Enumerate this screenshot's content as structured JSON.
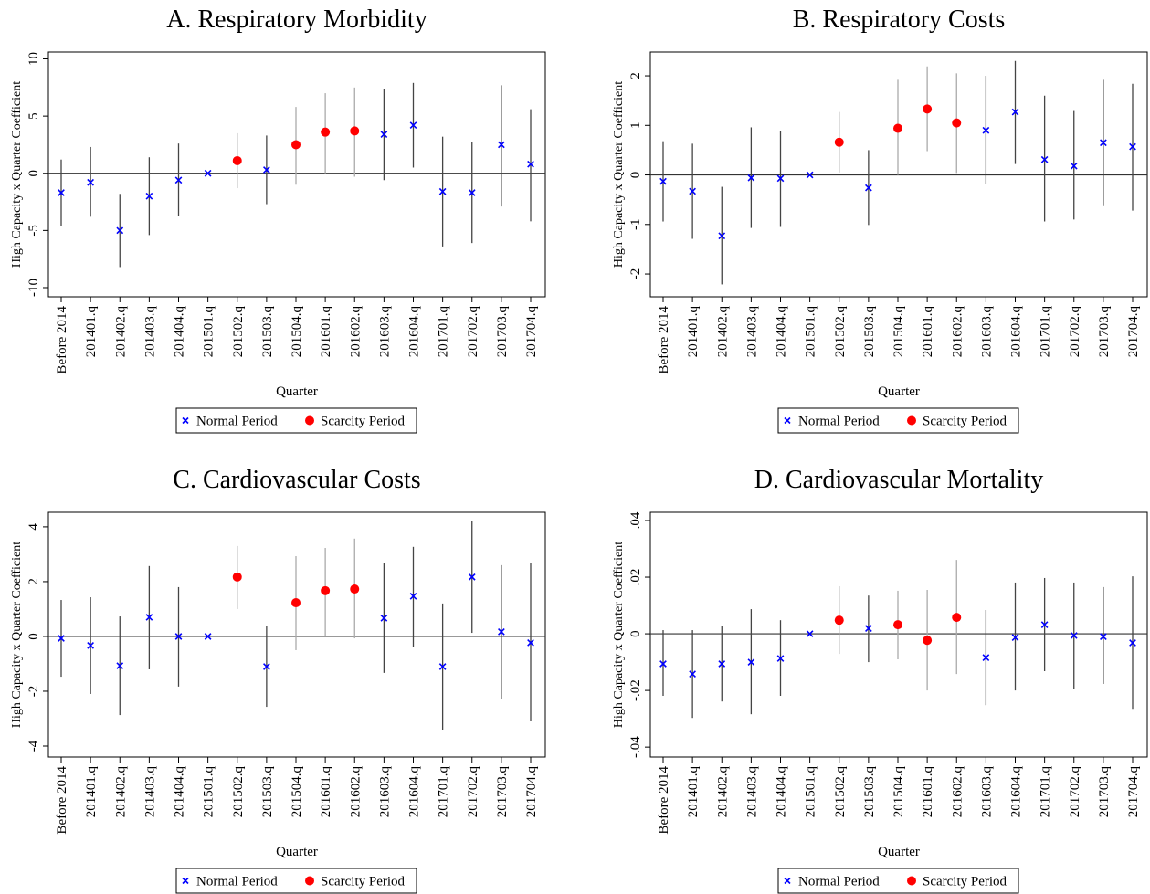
{
  "chart_data": [
    {
      "type": "errorbar",
      "title": "A. Respiratory Morbidity",
      "x_label": "Quarter",
      "y_label": "High Capacity x Quarter Coefficient",
      "categories": [
        "Before 2014",
        "201401.q",
        "201402.q",
        "201403.q",
        "201404.q",
        "201501.q",
        "201502.q",
        "201503.q",
        "201504.q",
        "201601.q",
        "201602.q",
        "201603.q",
        "201604.q",
        "201701.q",
        "201702.q",
        "201703.q",
        "201704.q"
      ],
      "ylim": [
        -10.8,
        10.6
      ],
      "yticks": [
        -10,
        -5,
        0,
        5,
        10
      ],
      "legend": "bottom",
      "series": [
        {
          "name": "Normal Period",
          "color": "#0000ff",
          "marker": "x",
          "ci_color": "#444444",
          "values": [
            -1.7,
            -0.8,
            -5.0,
            -2.0,
            -0.6,
            0,
            null,
            0.3,
            null,
            null,
            null,
            3.4,
            4.2,
            -1.6,
            -1.7,
            2.5,
            0.8
          ],
          "ci_low": [
            -4.6,
            -3.8,
            -8.2,
            -5.4,
            -3.7,
            null,
            null,
            -2.7,
            null,
            null,
            null,
            -0.6,
            0.5,
            -6.4,
            -6.1,
            -2.9,
            -4.2
          ],
          "ci_high": [
            1.2,
            2.3,
            -1.8,
            1.4,
            2.6,
            null,
            null,
            3.3,
            null,
            null,
            null,
            7.4,
            7.9,
            3.2,
            2.7,
            7.7,
            5.6
          ]
        },
        {
          "name": "Scarcity Period",
          "color": "#ff0000",
          "marker": "circle",
          "ci_color": "#aaaaaa",
          "values": [
            null,
            null,
            null,
            null,
            null,
            null,
            1.1,
            null,
            2.5,
            3.6,
            3.7,
            null,
            null,
            null,
            null,
            null,
            null
          ],
          "ci_low": [
            null,
            null,
            null,
            null,
            null,
            null,
            -1.3,
            null,
            -1.0,
            0.0,
            -0.3,
            null,
            null,
            null,
            null,
            null,
            null
          ],
          "ci_high": [
            null,
            null,
            null,
            null,
            null,
            null,
            3.5,
            null,
            5.8,
            7.0,
            7.5,
            null,
            null,
            null,
            null,
            null,
            null
          ]
        }
      ]
    },
    {
      "type": "errorbar",
      "title": "B. Respiratory Costs",
      "x_label": "Quarter",
      "y_label": "High Capacity x Quarter Coefficient",
      "categories": [
        "Before 2014",
        "201401.q",
        "201402.q",
        "201403.q",
        "201404.q",
        "201501.q",
        "201502.q",
        "201503.q",
        "201504.q",
        "201601.q",
        "201602.q",
        "201603.q",
        "201604.q",
        "201701.q",
        "201702.q",
        "201703.q",
        "201704.q"
      ],
      "ylim": [
        -2.46,
        2.48
      ],
      "yticks": [
        -2,
        -1,
        0,
        1,
        2
      ],
      "legend": "bottom",
      "series": [
        {
          "name": "Normal Period",
          "color": "#0000ff",
          "marker": "x",
          "ci_color": "#444444",
          "values": [
            -0.13,
            -0.33,
            -1.23,
            -0.06,
            -0.07,
            0,
            null,
            -0.26,
            null,
            null,
            null,
            0.9,
            1.27,
            0.31,
            0.18,
            0.65,
            0.57
          ],
          "ci_low": [
            -0.94,
            -1.29,
            -2.21,
            -1.07,
            -1.05,
            null,
            null,
            -1.01,
            null,
            null,
            null,
            -0.18,
            0.22,
            -0.94,
            -0.9,
            -0.63,
            -0.72
          ],
          "ci_high": [
            0.68,
            0.63,
            -0.24,
            0.96,
            0.88,
            null,
            null,
            0.5,
            null,
            null,
            null,
            2.0,
            2.3,
            1.6,
            1.29,
            1.92,
            1.84
          ]
        },
        {
          "name": "Scarcity Period",
          "color": "#ff0000",
          "marker": "circle",
          "ci_color": "#aaaaaa",
          "values": [
            null,
            null,
            null,
            null,
            null,
            null,
            0.66,
            null,
            0.94,
            1.33,
            1.05,
            null,
            null,
            null,
            null,
            null,
            null
          ],
          "ci_low": [
            null,
            null,
            null,
            null,
            null,
            null,
            0.05,
            null,
            0.0,
            0.48,
            0.04,
            null,
            null,
            null,
            null,
            null,
            null
          ],
          "ci_high": [
            null,
            null,
            null,
            null,
            null,
            null,
            1.27,
            null,
            1.92,
            2.19,
            2.05,
            null,
            null,
            null,
            null,
            null,
            null
          ]
        }
      ]
    },
    {
      "type": "errorbar",
      "title": "C. Cardiovascular Costs",
      "x_label": "Quarter",
      "y_label": "High Capacity x Quarter Coefficient",
      "categories": [
        "Before 2014",
        "201401.q",
        "201402.q",
        "201403.q",
        "201404.q",
        "201501.q",
        "201502.q",
        "201503.q",
        "201504.q",
        "201601.q",
        "201602.q",
        "201603.q",
        "201604.q",
        "201701.q",
        "201702.q",
        "201703.q",
        "201704.q"
      ],
      "ylim": [
        -4.4,
        4.53
      ],
      "yticks": [
        -4,
        -2,
        0,
        2,
        4
      ],
      "legend": "bottom",
      "series": [
        {
          "name": "Normal Period",
          "color": "#0000ff",
          "marker": "x",
          "ci_color": "#444444",
          "values": [
            -0.07,
            -0.33,
            -1.07,
            0.7,
            0,
            0,
            null,
            -1.1,
            null,
            null,
            null,
            0.67,
            1.47,
            -1.1,
            2.17,
            0.17,
            -0.23
          ],
          "ci_low": [
            -1.47,
            -2.1,
            -2.87,
            -1.2,
            -1.83,
            null,
            null,
            -2.57,
            null,
            null,
            null,
            -1.33,
            -0.37,
            -3.4,
            0.13,
            -2.27,
            -3.1
          ],
          "ci_high": [
            1.33,
            1.43,
            0.73,
            2.57,
            1.8,
            null,
            null,
            0.37,
            null,
            null,
            null,
            2.67,
            3.27,
            1.2,
            4.2,
            2.6,
            2.67
          ]
        },
        {
          "name": "Scarcity Period",
          "color": "#ff0000",
          "marker": "circle",
          "ci_color": "#aaaaaa",
          "values": [
            null,
            null,
            null,
            null,
            null,
            null,
            2.17,
            null,
            1.23,
            1.67,
            1.73,
            null,
            null,
            null,
            null,
            null,
            null
          ],
          "ci_low": [
            null,
            null,
            null,
            null,
            null,
            null,
            1.0,
            null,
            -0.5,
            0.0,
            -0.07,
            null,
            null,
            null,
            null,
            null,
            null
          ],
          "ci_high": [
            null,
            null,
            null,
            null,
            null,
            null,
            3.3,
            null,
            2.93,
            3.23,
            3.57,
            null,
            null,
            null,
            null,
            null,
            null
          ]
        }
      ]
    },
    {
      "type": "errorbar",
      "title": "D. Cardiovascular Mortality",
      "x_label": "Quarter",
      "y_label": "High Capacity x Quarter Coefficient",
      "categories": [
        "Before 2014",
        "201401.q",
        "201402.q",
        "201403.q",
        "201404.q",
        "201501.q",
        "201502.q",
        "201503.q",
        "201504.q",
        "201601.q",
        "201602.q",
        "201603.q",
        "201604.q",
        "201701.q",
        "201702.q",
        "201703.q",
        "201704.q"
      ],
      "ylim": [
        -0.0435,
        0.0429
      ],
      "yticks": [
        {
          "value": -0.04,
          "label": "-.04"
        },
        {
          "value": -0.02,
          "label": "-.02"
        },
        0,
        {
          "value": 0.02,
          "label": ".02"
        },
        {
          "value": 0.04,
          "label": ".04"
        }
      ],
      "legend": "bottom",
      "series": [
        {
          "name": "Normal Period",
          "color": "#0000ff",
          "marker": "x",
          "ci_color": "#444444",
          "values": [
            -0.0106,
            -0.0142,
            -0.0106,
            -0.01,
            -0.0087,
            0,
            null,
            0.0019,
            null,
            null,
            null,
            -0.0084,
            -0.0013,
            0.0032,
            -0.0006,
            -0.001,
            -0.0032
          ],
          "ci_low": [
            -0.0219,
            -0.0297,
            -0.0239,
            -0.0284,
            -0.0219,
            null,
            null,
            -0.01,
            null,
            null,
            null,
            -0.0252,
            -0.02,
            -0.0132,
            -0.0194,
            -0.0177,
            -0.0265
          ],
          "ci_high": [
            0.0013,
            0.0013,
            0.0026,
            0.0087,
            0.0048,
            null,
            null,
            0.0135,
            null,
            null,
            null,
            0.0084,
            0.0181,
            0.0197,
            0.0181,
            0.0165,
            0.0203
          ]
        },
        {
          "name": "Scarcity Period",
          "color": "#ff0000",
          "marker": "circle",
          "ci_color": "#aaaaaa",
          "values": [
            null,
            null,
            null,
            null,
            null,
            null,
            0.0048,
            null,
            0.0032,
            -0.0023,
            0.0058,
            null,
            null,
            null,
            null,
            null,
            null
          ],
          "ci_low": [
            null,
            null,
            null,
            null,
            null,
            null,
            -0.0071,
            null,
            -0.009,
            -0.02,
            -0.0142,
            null,
            null,
            null,
            null,
            null,
            null
          ],
          "ci_high": [
            null,
            null,
            null,
            null,
            null,
            null,
            0.0168,
            null,
            0.0152,
            0.0155,
            0.0261,
            null,
            null,
            null,
            null,
            null,
            null
          ]
        }
      ]
    }
  ]
}
